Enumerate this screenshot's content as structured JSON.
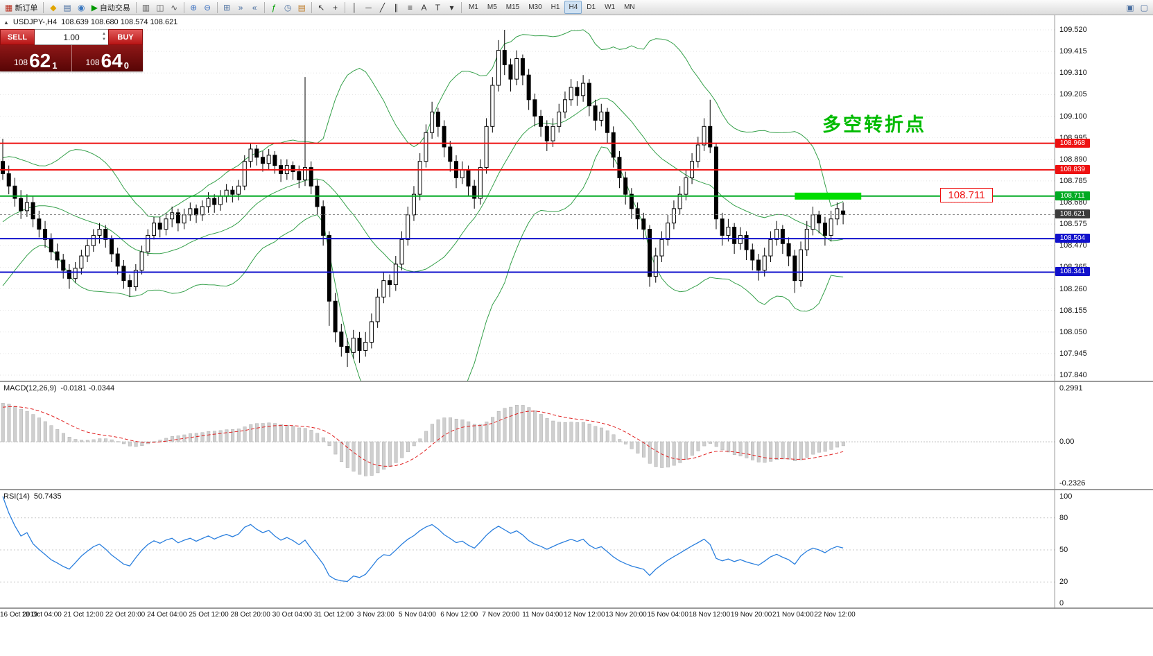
{
  "toolbar": {
    "items": [
      {
        "name": "new-order-button",
        "glyph": "▦",
        "glyph_color": "#b83020",
        "label": "新订单"
      },
      {
        "name": "toolbar-separator-1",
        "type": "sep"
      },
      {
        "name": "metaeditor-icon",
        "glyph": "◆",
        "glyph_color": "#e0a400"
      },
      {
        "name": "profiles-icon",
        "glyph": "▤",
        "glyph_color": "#4a6fa0"
      },
      {
        "name": "help-icon",
        "glyph": "◉",
        "glyph_color": "#3a78c0"
      },
      {
        "name": "autotrading-button",
        "glyph": "▶",
        "glyph_color": "#009800",
        "label": "自动交易"
      },
      {
        "name": "toolbar-separator-2",
        "type": "sep"
      },
      {
        "name": "bar-chart-icon",
        "glyph": "▥",
        "glyph_color": "#5a5a5a"
      },
      {
        "name": "candlestick-chart-icon",
        "glyph": "◫",
        "glyph_color": "#5a5a5a"
      },
      {
        "name": "line-chart-icon",
        "glyph": "∿",
        "glyph_color": "#5a5a5a"
      },
      {
        "name": "toolbar-separator-3",
        "type": "sep"
      },
      {
        "name": "zoom-in-icon",
        "glyph": "⊕",
        "glyph_color": "#3a70c0"
      },
      {
        "name": "zoom-out-icon",
        "glyph": "⊖",
        "glyph_color": "#3a70c0"
      },
      {
        "name": "toolbar-separator-4",
        "type": "sep"
      },
      {
        "name": "tile-windows-icon",
        "glyph": "⊞",
        "glyph_color": "#4a6fa0"
      },
      {
        "name": "auto-scroll-icon",
        "glyph": "»",
        "glyph_color": "#4a6fa0"
      },
      {
        "name": "chart-shift-icon",
        "glyph": "«",
        "glyph_color": "#4a6fa0"
      },
      {
        "name": "toolbar-separator-5",
        "type": "sep"
      },
      {
        "name": "indicators-icon",
        "glyph": "ƒ",
        "glyph_color": "#00a000"
      },
      {
        "name": "periods-icon",
        "glyph": "◷",
        "glyph_color": "#4a6fa0"
      },
      {
        "name": "templates-icon",
        "glyph": "▤",
        "glyph_color": "#c08030"
      },
      {
        "name": "toolbar-separator-6",
        "type": "sep"
      },
      {
        "name": "cursor-icon",
        "glyph": "↖",
        "glyph_color": "#303030"
      },
      {
        "name": "crosshair-icon",
        "glyph": "+",
        "glyph_color": "#303030"
      },
      {
        "name": "toolbar-separator-7",
        "type": "sep"
      },
      {
        "name": "vertical-line-icon",
        "glyph": "│",
        "glyph_color": "#303030"
      },
      {
        "name": "horizontal-line-icon",
        "glyph": "─",
        "glyph_color": "#303030"
      },
      {
        "name": "trendline-icon",
        "glyph": "╱",
        "glyph_color": "#303030"
      },
      {
        "name": "channel-icon",
        "glyph": "∥",
        "glyph_color": "#303030"
      },
      {
        "name": "fibonacci-icon",
        "glyph": "≡",
        "glyph_color": "#303030"
      },
      {
        "name": "text-icon",
        "glyph": "A",
        "glyph_color": "#303030"
      },
      {
        "name": "label-icon",
        "glyph": "T",
        "glyph_color": "#303030"
      },
      {
        "name": "shapes-dropdown-icon",
        "glyph": "▾",
        "glyph_color": "#303030"
      },
      {
        "name": "toolbar-separator-8",
        "type": "sep"
      },
      {
        "name": "timeframe-m1-button",
        "label": "M1",
        "tf": true
      },
      {
        "name": "timeframe-m5-button",
        "label": "M5",
        "tf": true
      },
      {
        "name": "timeframe-m15-button",
        "label": "M15",
        "tf": true
      },
      {
        "name": "timeframe-m30-button",
        "label": "M30",
        "tf": true
      },
      {
        "name": "timeframe-h1-button",
        "label": "H1",
        "tf": true
      },
      {
        "name": "timeframe-h4-button",
        "label": "H4",
        "tf": true,
        "active": true
      },
      {
        "name": "timeframe-d1-button",
        "label": "D1",
        "tf": true
      },
      {
        "name": "timeframe-w1-button",
        "label": "W1",
        "tf": true
      },
      {
        "name": "timeframe-mn-button",
        "label": "MN",
        "tf": true
      },
      {
        "name": "toolbar-right-spacer",
        "type": "spacer"
      },
      {
        "name": "dock-window-icon",
        "glyph": "▣",
        "glyph_color": "#4a6fa0"
      },
      {
        "name": "float-window-icon",
        "glyph": "▢",
        "glyph_color": "#4a6fa0"
      }
    ]
  },
  "symbol_header": {
    "toggle_icon": "▲",
    "symbol_period": "USDJPY-,H4",
    "ohlc": "108.639 108.680 108.574 108.621"
  },
  "trade_panel": {
    "sell_label": "SELL",
    "buy_label": "BUY",
    "volume": "1.00",
    "volume_up_icon": "▲",
    "volume_down_icon": "▼",
    "sell_price": {
      "prefix": "108",
      "big": "62",
      "sup": "1"
    },
    "buy_price": {
      "prefix": "108",
      "big": "64",
      "sup": "0"
    }
  },
  "annotation": {
    "text": "多空转折点",
    "color": "#00bb00"
  },
  "price_callout": {
    "text": "108.711",
    "color": "#ee1111"
  },
  "chart_data": {
    "type": "candlestick",
    "symbol": "USDJPY-",
    "timeframe": "H4",
    "price_axis": {
      "ticks": [
        "109.520",
        "109.415",
        "109.310",
        "109.205",
        "109.100",
        "108.995",
        "108.890",
        "108.785",
        "108.680",
        "108.575",
        "108.470",
        "108.365",
        "108.260",
        "108.155",
        "108.050",
        "107.945",
        "107.840"
      ],
      "max": 109.52,
      "min": 107.84
    },
    "levels": [
      {
        "price": 108.968,
        "color": "#ee1111",
        "tag": "108.968"
      },
      {
        "price": 108.839,
        "color": "#ee1111",
        "tag": "108.839"
      },
      {
        "price": 108.711,
        "color": "#00aa22",
        "tag": "108.711"
      },
      {
        "price": 108.504,
        "color": "#1111cc",
        "tag": "108.504"
      },
      {
        "price": 108.341,
        "color": "#1111cc",
        "tag": "108.341"
      }
    ],
    "current_price": {
      "value": 108.621,
      "tag": "108.621",
      "color": "#3c3c3c"
    },
    "highlight_zone": {
      "price": 108.711,
      "start_index": 131,
      "end_index": 142,
      "color": "#00dd00"
    },
    "bollinger": {
      "period": 20,
      "deviation": 2,
      "color": "#35a04a"
    },
    "colors": {
      "bull": "#ffffff",
      "bear": "#000000",
      "outline": "#000000",
      "grid": "#e2e2e2"
    },
    "candles": [
      [
        108.88,
        108.99,
        108.79,
        108.82
      ],
      [
        108.82,
        108.86,
        108.72,
        108.76
      ],
      [
        108.76,
        108.8,
        108.66,
        108.7
      ],
      [
        108.7,
        108.74,
        108.6,
        108.64
      ],
      [
        108.64,
        108.72,
        108.61,
        108.68
      ],
      [
        108.68,
        108.71,
        108.56,
        108.6
      ],
      [
        108.6,
        108.64,
        108.51,
        108.55
      ],
      [
        108.55,
        108.59,
        108.46,
        108.5
      ],
      [
        108.5,
        108.53,
        108.4,
        108.44
      ],
      [
        108.44,
        108.48,
        108.36,
        108.4
      ],
      [
        108.4,
        108.43,
        108.31,
        108.35
      ],
      [
        108.35,
        108.38,
        108.26,
        108.31
      ],
      [
        108.31,
        108.39,
        108.29,
        108.36
      ],
      [
        108.36,
        108.45,
        108.33,
        108.42
      ],
      [
        108.42,
        108.5,
        108.39,
        108.47
      ],
      [
        108.47,
        108.55,
        108.44,
        108.52
      ],
      [
        108.52,
        108.58,
        108.48,
        108.55
      ],
      [
        108.55,
        108.57,
        108.46,
        108.5
      ],
      [
        108.5,
        108.52,
        108.39,
        108.43
      ],
      [
        108.43,
        108.46,
        108.33,
        108.37
      ],
      [
        108.37,
        108.4,
        108.26,
        108.3
      ],
      [
        108.3,
        108.33,
        108.22,
        108.27
      ],
      [
        108.27,
        108.38,
        108.25,
        108.35
      ],
      [
        108.35,
        108.47,
        108.33,
        108.44
      ],
      [
        108.44,
        108.55,
        108.42,
        108.52
      ],
      [
        108.52,
        108.61,
        108.5,
        108.58
      ],
      [
        108.58,
        108.61,
        108.51,
        108.55
      ],
      [
        108.55,
        108.63,
        108.52,
        108.6
      ],
      [
        108.6,
        108.66,
        108.56,
        108.63
      ],
      [
        108.63,
        108.65,
        108.54,
        108.58
      ],
      [
        108.58,
        108.65,
        108.55,
        108.62
      ],
      [
        108.62,
        108.68,
        108.59,
        108.65
      ],
      [
        108.65,
        108.67,
        108.58,
        108.62
      ],
      [
        108.62,
        108.69,
        108.59,
        108.66
      ],
      [
        108.66,
        108.73,
        108.63,
        108.7
      ],
      [
        108.7,
        108.72,
        108.63,
        108.67
      ],
      [
        108.67,
        108.74,
        108.64,
        108.71
      ],
      [
        108.71,
        108.77,
        108.68,
        108.74
      ],
      [
        108.74,
        108.76,
        108.68,
        108.72
      ],
      [
        108.72,
        108.79,
        108.69,
        108.76
      ],
      [
        108.76,
        108.91,
        108.74,
        108.88
      ],
      [
        108.88,
        108.97,
        108.85,
        108.94
      ],
      [
        108.94,
        108.96,
        108.86,
        108.9
      ],
      [
        108.9,
        108.93,
        108.83,
        108.87
      ],
      [
        108.87,
        108.94,
        108.84,
        108.91
      ],
      [
        108.91,
        108.93,
        108.82,
        108.86
      ],
      [
        108.86,
        108.89,
        108.78,
        108.82
      ],
      [
        108.82,
        108.89,
        108.79,
        108.86
      ],
      [
        108.86,
        108.88,
        108.79,
        108.83
      ],
      [
        108.83,
        108.86,
        108.75,
        108.79
      ],
      [
        108.79,
        109.29,
        108.76,
        108.85
      ],
      [
        108.85,
        108.88,
        108.72,
        108.76
      ],
      [
        108.76,
        108.79,
        108.62,
        108.66
      ],
      [
        108.66,
        108.69,
        108.47,
        108.52
      ],
      [
        108.52,
        108.54,
        108.08,
        108.2
      ],
      [
        108.2,
        108.24,
        108.0,
        108.05
      ],
      [
        108.05,
        108.09,
        107.93,
        107.98
      ],
      [
        107.98,
        108.02,
        107.88,
        107.95
      ],
      [
        107.95,
        108.06,
        107.92,
        108.02
      ],
      [
        108.02,
        108.05,
        107.9,
        107.96
      ],
      [
        107.96,
        108.05,
        107.93,
        108.0
      ],
      [
        108.0,
        108.14,
        107.97,
        108.1
      ],
      [
        108.1,
        108.26,
        108.07,
        108.22
      ],
      [
        108.22,
        108.34,
        108.19,
        108.3
      ],
      [
        108.3,
        108.33,
        108.22,
        108.28
      ],
      [
        108.28,
        108.42,
        108.25,
        108.38
      ],
      [
        108.38,
        108.54,
        108.35,
        108.5
      ],
      [
        108.5,
        108.66,
        108.47,
        108.62
      ],
      [
        108.62,
        108.76,
        108.59,
        108.72
      ],
      [
        108.72,
        108.92,
        108.69,
        108.88
      ],
      [
        108.88,
        109.06,
        108.85,
        109.02
      ],
      [
        109.02,
        109.17,
        108.99,
        109.12
      ],
      [
        109.12,
        109.14,
        109.0,
        109.05
      ],
      [
        109.05,
        109.08,
        108.9,
        108.95
      ],
      [
        108.95,
        108.98,
        108.83,
        108.88
      ],
      [
        108.88,
        108.91,
        108.75,
        108.8
      ],
      [
        108.8,
        108.88,
        108.77,
        108.84
      ],
      [
        108.84,
        108.86,
        108.71,
        108.76
      ],
      [
        108.76,
        108.79,
        108.65,
        108.7
      ],
      [
        108.7,
        108.89,
        108.67,
        108.85
      ],
      [
        108.85,
        109.09,
        108.82,
        109.05
      ],
      [
        109.05,
        109.29,
        109.02,
        109.25
      ],
      [
        109.25,
        109.47,
        109.22,
        109.42
      ],
      [
        109.42,
        109.52,
        109.3,
        109.35
      ],
      [
        109.35,
        109.38,
        109.22,
        109.28
      ],
      [
        109.28,
        109.42,
        109.25,
        109.38
      ],
      [
        109.38,
        109.4,
        109.25,
        109.3
      ],
      [
        109.3,
        109.33,
        109.13,
        109.18
      ],
      [
        109.18,
        109.21,
        109.05,
        109.1
      ],
      [
        109.1,
        109.13,
        109.0,
        109.05
      ],
      [
        109.05,
        109.08,
        108.93,
        108.98
      ],
      [
        108.98,
        109.09,
        108.95,
        109.05
      ],
      [
        109.05,
        109.16,
        109.02,
        109.12
      ],
      [
        109.12,
        109.22,
        109.09,
        109.18
      ],
      [
        109.18,
        109.28,
        109.15,
        109.24
      ],
      [
        109.24,
        109.27,
        109.15,
        109.2
      ],
      [
        109.2,
        109.3,
        109.17,
        109.26
      ],
      [
        109.26,
        109.28,
        109.1,
        109.15
      ],
      [
        109.15,
        109.18,
        109.03,
        109.08
      ],
      [
        109.08,
        109.16,
        109.05,
        109.12
      ],
      [
        109.12,
        109.14,
        108.97,
        109.02
      ],
      [
        109.02,
        109.05,
        108.85,
        108.9
      ],
      [
        108.9,
        108.93,
        108.75,
        108.8
      ],
      [
        108.8,
        108.83,
        108.67,
        108.72
      ],
      [
        108.72,
        108.75,
        108.6,
        108.65
      ],
      [
        108.65,
        108.68,
        108.55,
        108.6
      ],
      [
        108.6,
        108.63,
        108.5,
        108.55
      ],
      [
        108.55,
        108.57,
        108.27,
        108.32
      ],
      [
        108.32,
        108.46,
        108.29,
        108.42
      ],
      [
        108.42,
        108.54,
        108.39,
        108.5
      ],
      [
        108.5,
        108.62,
        108.47,
        108.58
      ],
      [
        108.58,
        108.69,
        108.55,
        108.65
      ],
      [
        108.65,
        108.76,
        108.62,
        108.72
      ],
      [
        108.72,
        108.84,
        108.69,
        108.8
      ],
      [
        108.8,
        108.92,
        108.77,
        108.88
      ],
      [
        108.88,
        109.0,
        108.85,
        108.96
      ],
      [
        108.96,
        109.09,
        108.93,
        109.05
      ],
      [
        109.05,
        109.18,
        108.92,
        108.95
      ],
      [
        108.95,
        108.97,
        108.55,
        108.6
      ],
      [
        108.6,
        108.63,
        108.47,
        108.52
      ],
      [
        108.52,
        108.6,
        108.49,
        108.56
      ],
      [
        108.56,
        108.58,
        108.43,
        108.48
      ],
      [
        108.48,
        108.56,
        108.45,
        108.52
      ],
      [
        108.52,
        108.54,
        108.4,
        108.45
      ],
      [
        108.45,
        108.48,
        108.35,
        108.4
      ],
      [
        108.4,
        108.43,
        108.3,
        108.35
      ],
      [
        108.35,
        108.46,
        108.32,
        108.42
      ],
      [
        108.42,
        108.54,
        108.39,
        108.5
      ],
      [
        108.5,
        108.59,
        108.47,
        108.55
      ],
      [
        108.55,
        108.57,
        108.43,
        108.48
      ],
      [
        108.48,
        108.51,
        108.37,
        108.42
      ],
      [
        108.42,
        108.45,
        108.24,
        108.3
      ],
      [
        108.3,
        108.49,
        108.27,
        108.45
      ],
      [
        108.45,
        108.59,
        108.42,
        108.55
      ],
      [
        108.55,
        108.66,
        108.52,
        108.62
      ],
      [
        108.62,
        108.64,
        108.53,
        108.58
      ],
      [
        108.58,
        108.61,
        108.47,
        108.52
      ],
      [
        108.52,
        108.64,
        108.49,
        108.6
      ],
      [
        108.6,
        108.68,
        108.57,
        108.65
      ],
      [
        108.639,
        108.68,
        108.574,
        108.621
      ]
    ],
    "macd": {
      "label": "MACD(12,26,9)",
      "values": "-0.0181 -0.0344",
      "ticks": [
        "0.2991",
        "0.00",
        "-0.2326"
      ],
      "fast": 12,
      "slow": 26,
      "signal": 9,
      "hist_color": "#cfcfcf",
      "signal_color": "#e02020"
    },
    "rsi": {
      "label": "RSI(14)",
      "value": "50.7435",
      "ticks": [
        "100",
        "80",
        "50",
        "20",
        "0"
      ],
      "period": 14,
      "levels": [
        80,
        50,
        20
      ],
      "color": "#2a7fde"
    },
    "time_axis": [
      "16 Oct 2019",
      "18 Oct 04:00",
      "21 Oct 12:00",
      "22 Oct 20:00",
      "24 Oct 04:00",
      "25 Oct 12:00",
      "28 Oct 20:00",
      "30 Oct 04:00",
      "31 Oct 12:00",
      "3 Nov 23:00",
      "5 Nov 04:00",
      "6 Nov 12:00",
      "7 Nov 20:00",
      "11 Nov 04:00",
      "12 Nov 12:00",
      "13 Nov 20:00",
      "15 Nov 04:00",
      "18 Nov 12:00",
      "19 Nov 20:00",
      "21 Nov 04:00",
      "22 Nov 12:00"
    ]
  }
}
